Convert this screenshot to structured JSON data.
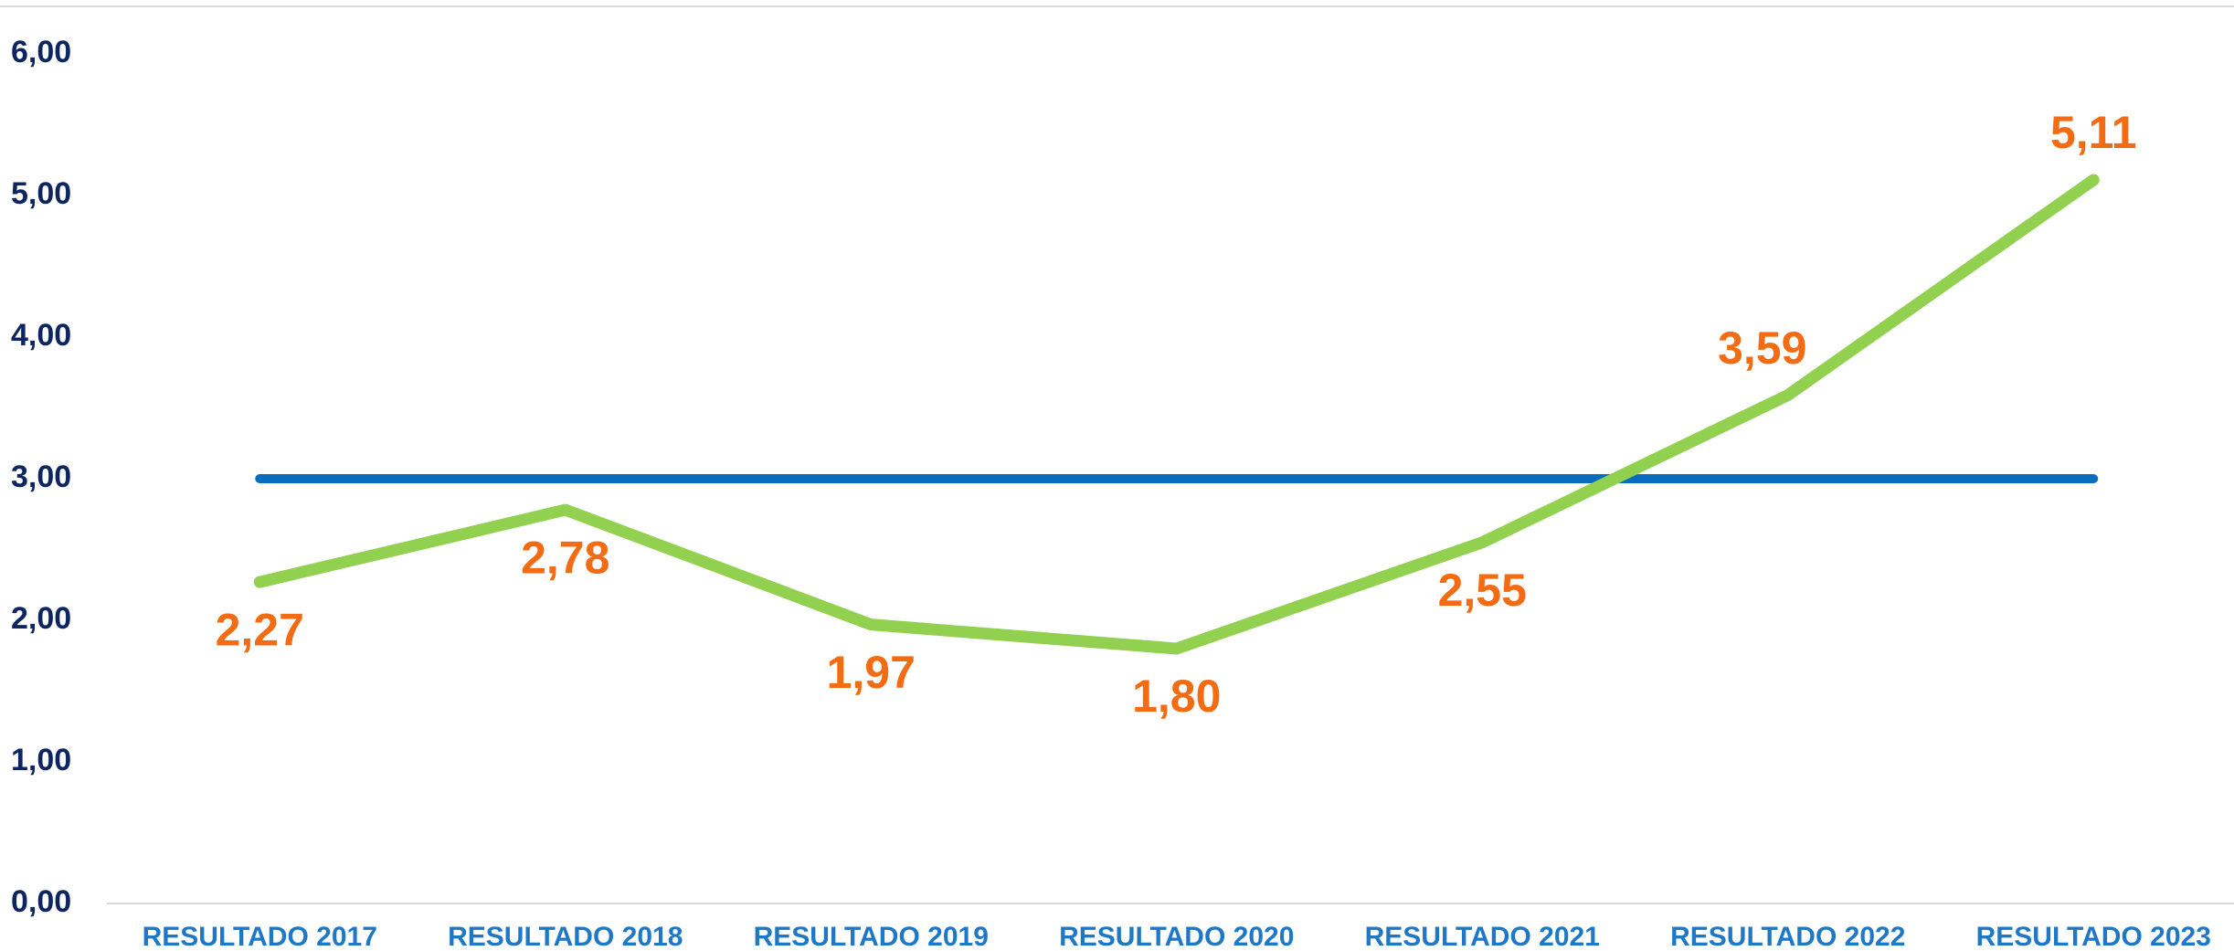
{
  "chart_data": {
    "type": "line",
    "categories": [
      "RESULTADO 2017",
      "RESULTADO 2018",
      "RESULTADO 2019",
      "RESULTADO 2020",
      "RESULTADO 2021",
      "RESULTADO 2022",
      "RESULTADO 2023"
    ],
    "series": [
      {
        "color": "#92d050",
        "values": [
          2.27,
          2.78,
          1.97,
          1.8,
          2.55,
          3.59,
          5.11
        ],
        "value_labels": [
          "2,27",
          "2,78",
          "1,97",
          "1,80",
          "2,55",
          "3,59",
          "5,11"
        ]
      },
      {
        "color": "#0a6cbf",
        "values": [
          3,
          3,
          3,
          3,
          3,
          3,
          3
        ]
      }
    ],
    "ylim": [
      0,
      6
    ],
    "yticks": [
      {
        "value": 0,
        "label": "0,00"
      },
      {
        "value": 1,
        "label": "1,00"
      },
      {
        "value": 2,
        "label": "2,00"
      },
      {
        "value": 3,
        "label": "3,00"
      },
      {
        "value": 4,
        "label": "4,00"
      },
      {
        "value": 5,
        "label": "5,00"
      },
      {
        "value": 6,
        "label": "6,00"
      }
    ],
    "grid": false
  }
}
